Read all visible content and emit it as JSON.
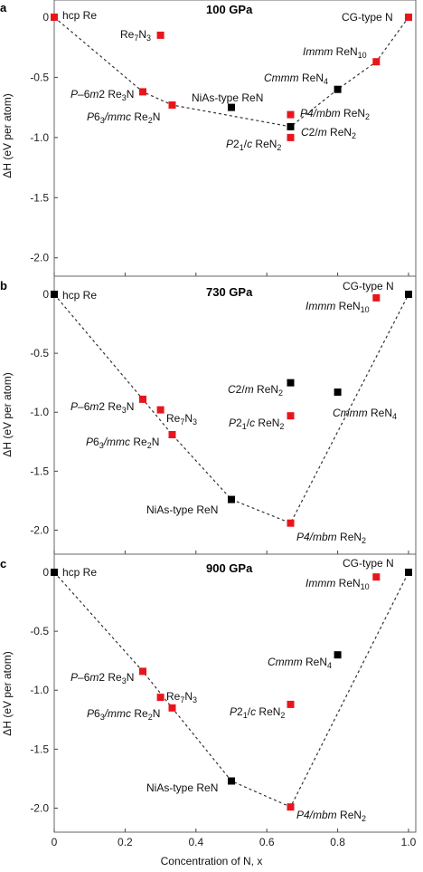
{
  "figure": {
    "xlabel": "Concentration of N, x",
    "ylabel": "ΔH (eV per atom)",
    "x_ticks": [
      "0",
      "0.2",
      "0.4",
      "0.6",
      "0.8",
      "1.0"
    ]
  },
  "colors": {
    "stable": "#000000",
    "metastable": "#e8161c",
    "hull": "#333333"
  },
  "chart_data": [
    {
      "type": "scatter",
      "panel": "a",
      "title": "100 GPa",
      "xlabel": "Concentration of N, x",
      "ylabel": "ΔH (eV per atom)",
      "xlim": [
        0,
        1
      ],
      "ylim": [
        -2.1,
        0
      ],
      "y_ticks": [
        "0",
        "-0.5",
        "-1.0",
        "-1.5",
        "-2.0"
      ],
      "points": [
        {
          "label": "hcp Re",
          "x": 0.0,
          "y": 0.0,
          "stable": false
        },
        {
          "label": "Re7N3",
          "x": 0.3,
          "y": -0.15,
          "stable": false
        },
        {
          "label": "P-6m2 Re3N",
          "x": 0.25,
          "y": -0.62,
          "stable": false
        },
        {
          "label": "P63/mmc Re2N",
          "x": 0.333,
          "y": -0.73,
          "stable": false
        },
        {
          "label": "NiAs-type ReN",
          "x": 0.5,
          "y": -0.75,
          "stable": true
        },
        {
          "label": "P4/mbm ReN2",
          "x": 0.667,
          "y": -0.81,
          "stable": false
        },
        {
          "label": "C2/m ReN2",
          "x": 0.667,
          "y": -0.91,
          "stable": true
        },
        {
          "label": "P21/c ReN2",
          "x": 0.667,
          "y": -1.0,
          "stable": false
        },
        {
          "label": "Cmmm ReN4",
          "x": 0.8,
          "y": -0.6,
          "stable": true
        },
        {
          "label": "Immm ReN10",
          "x": 0.909,
          "y": -0.37,
          "stable": false
        },
        {
          "label": "CG-type N",
          "x": 1.0,
          "y": 0.0,
          "stable": false
        }
      ],
      "hull": [
        [
          0,
          0
        ],
        [
          0.25,
          -0.62
        ],
        [
          0.333,
          -0.73
        ],
        [
          0.667,
          -0.91
        ],
        [
          0.8,
          -0.6
        ],
        [
          0.909,
          -0.37
        ],
        [
          1.0,
          0.0
        ]
      ]
    },
    {
      "type": "scatter",
      "panel": "b",
      "title": "730 GPa",
      "xlabel": "Concentration of N, x",
      "ylabel": "ΔH (eV per atom)",
      "xlim": [
        0,
        1
      ],
      "ylim": [
        -2.15,
        0.1
      ],
      "y_ticks": [
        "0",
        "-0.5",
        "-1.0",
        "-1.5",
        "-2.0"
      ],
      "points": [
        {
          "label": "hcp Re",
          "x": 0.0,
          "y": 0.0,
          "stable": true
        },
        {
          "label": "P-6m2 Re3N",
          "x": 0.25,
          "y": -0.89,
          "stable": false
        },
        {
          "label": "Re7N3",
          "x": 0.3,
          "y": -0.98,
          "stable": false
        },
        {
          "label": "P63/mmc Re2N",
          "x": 0.333,
          "y": -1.19,
          "stable": false
        },
        {
          "label": "NiAs-type ReN",
          "x": 0.5,
          "y": -1.74,
          "stable": true
        },
        {
          "label": "C2/m ReN2",
          "x": 0.667,
          "y": -0.75,
          "stable": true
        },
        {
          "label": "P21/c ReN2",
          "x": 0.667,
          "y": -1.03,
          "stable": false
        },
        {
          "label": "P4/mbm ReN2",
          "x": 0.667,
          "y": -1.94,
          "stable": false
        },
        {
          "label": "Cmmm ReN4",
          "x": 0.8,
          "y": -0.83,
          "stable": true
        },
        {
          "label": "Immm ReN10",
          "x": 0.909,
          "y": -0.03,
          "stable": false
        },
        {
          "label": "CG-type N",
          "x": 1.0,
          "y": 0.0,
          "stable": true
        }
      ],
      "hull": [
        [
          0,
          0
        ],
        [
          0.25,
          -0.89
        ],
        [
          0.333,
          -1.19
        ],
        [
          0.5,
          -1.74
        ],
        [
          0.667,
          -1.94
        ],
        [
          1.0,
          0.0
        ]
      ]
    },
    {
      "type": "scatter",
      "panel": "c",
      "title": "900 GPa",
      "xlabel": "Concentration of N, x",
      "ylabel": "ΔH (eV per atom)",
      "xlim": [
        0,
        1
      ],
      "ylim": [
        -2.15,
        0.1
      ],
      "y_ticks": [
        "0",
        "-0.5",
        "-1.0",
        "-1.5",
        "-2.0"
      ],
      "points": [
        {
          "label": "hcp Re",
          "x": 0.0,
          "y": 0.0,
          "stable": true
        },
        {
          "label": "P-6m2 Re3N",
          "x": 0.25,
          "y": -0.84,
          "stable": false
        },
        {
          "label": "Re7N3",
          "x": 0.3,
          "y": -1.06,
          "stable": false
        },
        {
          "label": "P63/mmc Re2N",
          "x": 0.333,
          "y": -1.15,
          "stable": false
        },
        {
          "label": "NiAs-type ReN",
          "x": 0.5,
          "y": -1.77,
          "stable": true
        },
        {
          "label": "P4/mbm ReN2",
          "x": 0.667,
          "y": -1.99,
          "stable": false
        },
        {
          "label": "P21/c ReN2",
          "x": 0.667,
          "y": -1.12,
          "stable": false
        },
        {
          "label": "Cmmm ReN4",
          "x": 0.8,
          "y": -0.7,
          "stable": true
        },
        {
          "label": "Immm ReN10",
          "x": 0.909,
          "y": -0.04,
          "stable": false
        },
        {
          "label": "CG-type N",
          "x": 1.0,
          "y": 0.0,
          "stable": true
        }
      ],
      "hull": [
        [
          0,
          0
        ],
        [
          0.25,
          -0.84
        ],
        [
          0.333,
          -1.15
        ],
        [
          0.5,
          -1.77
        ],
        [
          0.667,
          -1.99
        ],
        [
          1.0,
          0.0
        ]
      ]
    }
  ]
}
